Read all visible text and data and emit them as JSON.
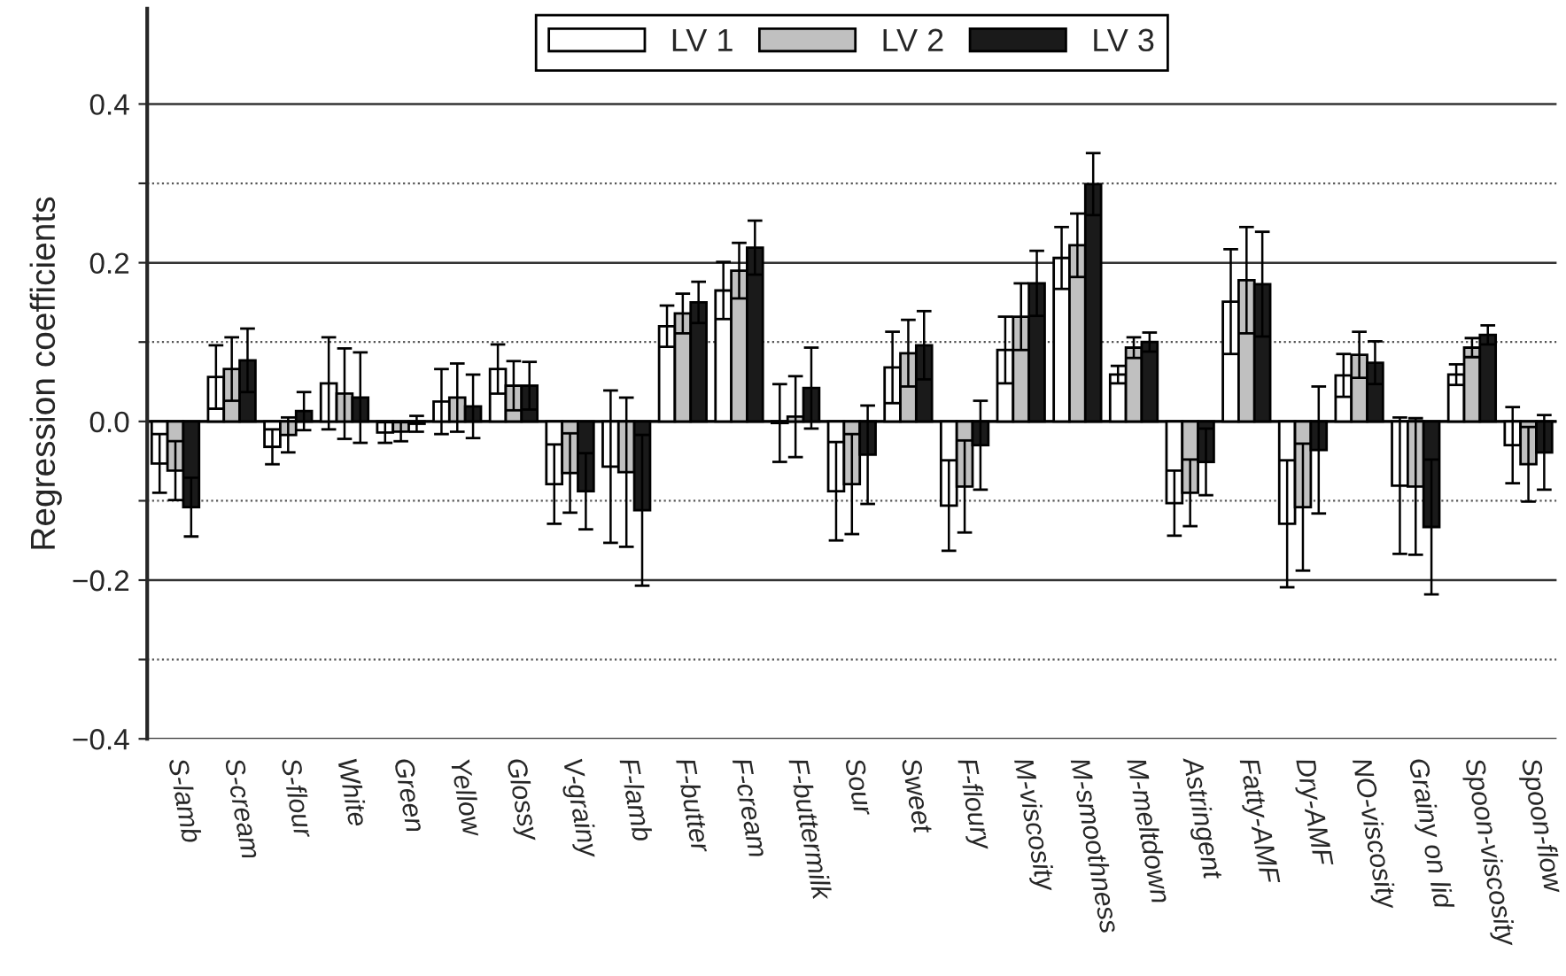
{
  "chart_data": {
    "type": "bar",
    "ylabel": "Regression coefficients",
    "categories": [
      "S-lamb",
      "S-cream",
      "S-flour",
      "White",
      "Green",
      "Yellow",
      "Glossy",
      "V-grainy",
      "F-lamb",
      "F-butter",
      "F-cream",
      "F-buttermilk",
      "Sour",
      "Sweet",
      "F-floury",
      "M-viscosity",
      "M-smoothness",
      "M-meltdown",
      "Astringent",
      "Fatty-AMF",
      "Dry-AMF",
      "NO-viscosity",
      "Grainy on lid",
      "Spoon-viscosity",
      "Spoon-flow"
    ],
    "series": [
      {
        "name": "LV 1",
        "color": "#ffffff",
        "values": [
          -0.053,
          0.056,
          -0.032,
          0.048,
          -0.014,
          0.025,
          0.066,
          -0.079,
          -0.057,
          0.12,
          0.165,
          -0.002,
          -0.088,
          0.068,
          -0.106,
          0.09,
          0.206,
          0.059,
          -0.103,
          0.151,
          -0.129,
          0.058,
          -0.081,
          0.059,
          -0.03
        ],
        "errors": [
          0.037,
          0.04,
          0.022,
          0.058,
          0.013,
          0.041,
          0.031,
          0.05,
          0.096,
          0.026,
          0.036,
          0.049,
          0.062,
          0.045,
          0.057,
          0.042,
          0.039,
          0.011,
          0.041,
          0.066,
          0.08,
          0.027,
          0.086,
          0.013,
          0.048
        ]
      },
      {
        "name": "LV 2",
        "color": "#c0c0c0",
        "values": [
          -0.062,
          0.066,
          -0.017,
          0.035,
          -0.013,
          0.03,
          0.045,
          -0.065,
          -0.064,
          0.136,
          0.19,
          0.006,
          -0.079,
          0.086,
          -0.082,
          0.132,
          0.222,
          0.093,
          -0.09,
          0.178,
          -0.108,
          0.084,
          -0.082,
          0.093,
          -0.054
        ],
        "errors": [
          0.037,
          0.04,
          0.022,
          0.057,
          0.012,
          0.043,
          0.031,
          0.05,
          0.094,
          0.025,
          0.035,
          0.051,
          0.063,
          0.042,
          0.058,
          0.042,
          0.04,
          0.013,
          0.042,
          0.067,
          0.08,
          0.029,
          0.086,
          0.012,
          0.047
        ]
      },
      {
        "name": "LV 3",
        "color": "#1a1a1a",
        "values": [
          -0.108,
          0.077,
          0.013,
          0.03,
          -0.003,
          0.019,
          0.045,
          -0.088,
          -0.112,
          0.15,
          0.219,
          0.042,
          -0.042,
          0.096,
          -0.03,
          0.174,
          0.299,
          0.1,
          -0.051,
          0.173,
          -0.036,
          0.074,
          -0.133,
          0.109,
          -0.039
        ],
        "errors": [
          0.037,
          0.04,
          0.024,
          0.057,
          0.01,
          0.04,
          0.03,
          0.048,
          0.095,
          0.026,
          0.034,
          0.051,
          0.062,
          0.043,
          0.056,
          0.041,
          0.039,
          0.012,
          0.042,
          0.066,
          0.08,
          0.027,
          0.085,
          0.012,
          0.047
        ]
      }
    ],
    "ylim": [
      -0.4,
      0.52
    ],
    "yticks": [
      {
        "value": -0.4,
        "label": "−0.4"
      },
      {
        "value": -0.3,
        "label": null
      },
      {
        "value": -0.2,
        "label": "−0.2"
      },
      {
        "value": -0.1,
        "label": null
      },
      {
        "value": 0.0,
        "label": "0.0"
      },
      {
        "value": 0.1,
        "label": null
      },
      {
        "value": 0.2,
        "label": "0.2"
      },
      {
        "value": 0.3,
        "label": null
      },
      {
        "value": 0.4,
        "label": "0.4"
      }
    ],
    "grid": "y",
    "legend": "top"
  }
}
